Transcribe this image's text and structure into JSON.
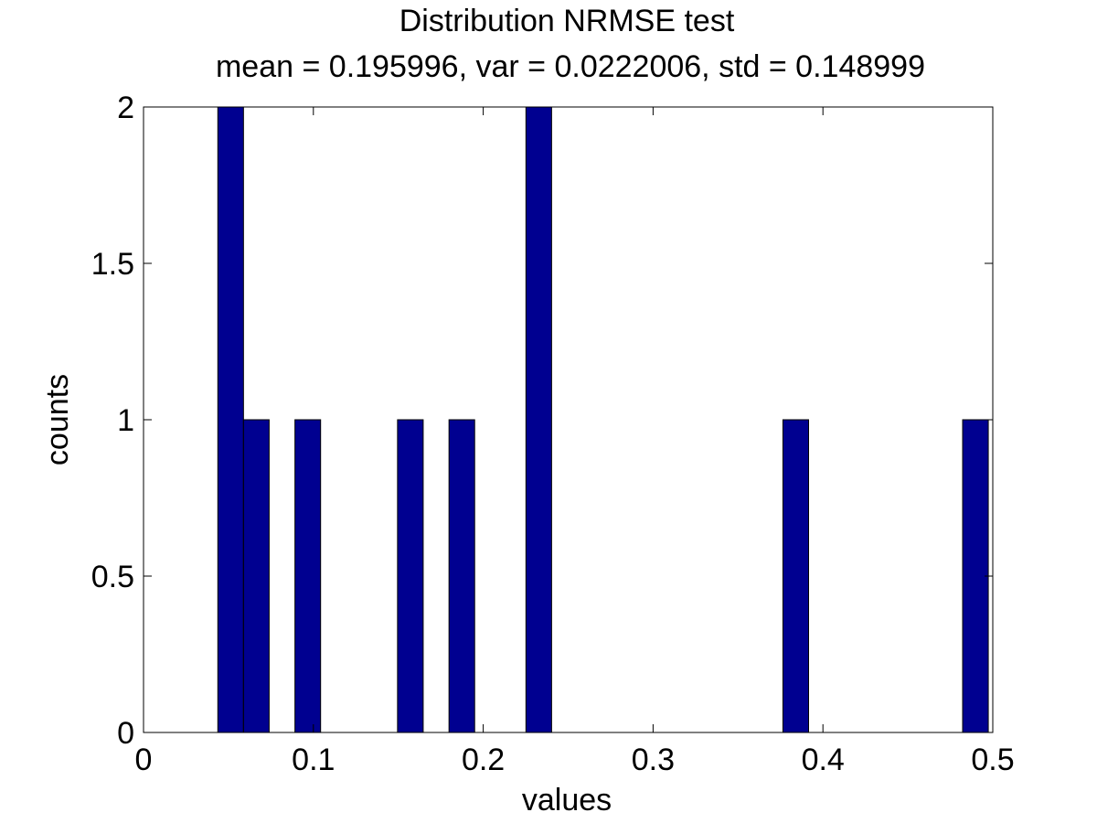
{
  "chart_data": {
    "type": "bar",
    "title": "Distribution NRMSE test",
    "subtitle": "mean = 0.195996, var = 0.0222006, std = 0.148999",
    "xlabel": "values",
    "ylabel": "counts",
    "xlim": [
      0,
      0.5
    ],
    "ylim": [
      0,
      2
    ],
    "xticks": [
      0,
      0.1,
      0.2,
      0.3,
      0.4,
      0.5
    ],
    "xtick_labels": [
      "0",
      "0.1",
      "0.2",
      "0.3",
      "0.4",
      "0.5"
    ],
    "yticks": [
      0,
      0.5,
      1,
      1.5,
      2
    ],
    "ytick_labels": [
      "0",
      "0.5",
      "1",
      "1.5",
      "2"
    ],
    "grid": false,
    "bar_color": "#000090",
    "bin_width": 0.0151,
    "bins": [
      {
        "center": 0.0513,
        "count": 2
      },
      {
        "center": 0.0664,
        "count": 1
      },
      {
        "center": 0.0967,
        "count": 1
      },
      {
        "center": 0.1571,
        "count": 1
      },
      {
        "center": 0.1874,
        "count": 1
      },
      {
        "center": 0.2327,
        "count": 2
      },
      {
        "center": 0.384,
        "count": 1
      },
      {
        "center": 0.4898,
        "count": 1
      }
    ]
  }
}
